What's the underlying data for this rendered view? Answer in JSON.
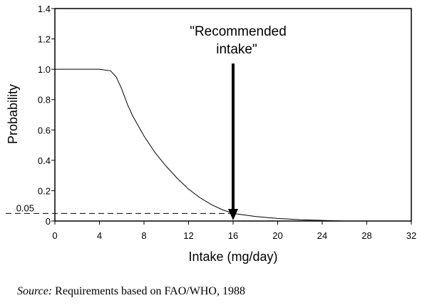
{
  "chart_data": {
    "type": "line",
    "title": "",
    "xlabel": "Intake (mg/day)",
    "ylabel": "Probability",
    "xlim": [
      0,
      32
    ],
    "ylim": [
      0,
      1.4
    ],
    "x_ticks": [
      "0",
      "4",
      "8",
      "12",
      "16",
      "20",
      "24",
      "28",
      "32"
    ],
    "y_ticks": [
      "0",
      "0.2",
      "0.4",
      "0.6",
      "0.8",
      "1.0",
      "1.2",
      "1.4"
    ],
    "y_extra_tick": "0.05",
    "grid": false,
    "series": [
      {
        "x": [
          0,
          4,
          5,
          5.5,
          6,
          6.5,
          7,
          8,
          9,
          10,
          11,
          12,
          13,
          14,
          15,
          16,
          18,
          20,
          22,
          24,
          26
        ],
        "y": [
          1.0,
          1.0,
          0.99,
          0.95,
          0.87,
          0.77,
          0.69,
          0.56,
          0.45,
          0.36,
          0.28,
          0.21,
          0.155,
          0.11,
          0.075,
          0.05,
          0.03,
          0.017,
          0.009,
          0.004,
          0.0
        ]
      }
    ],
    "reference_line": {
      "y": 0.05,
      "x_end": 16,
      "style": "dashed"
    },
    "annotation": {
      "lines": [
        "\"Recommended",
        "intake\""
      ],
      "arrow_x": 16,
      "arrow_y_top": 1.0,
      "arrow_y_bottom": 0
    }
  },
  "source": {
    "label": "Source:",
    "text": " Requirements based on FAO/WHO, 1988"
  }
}
